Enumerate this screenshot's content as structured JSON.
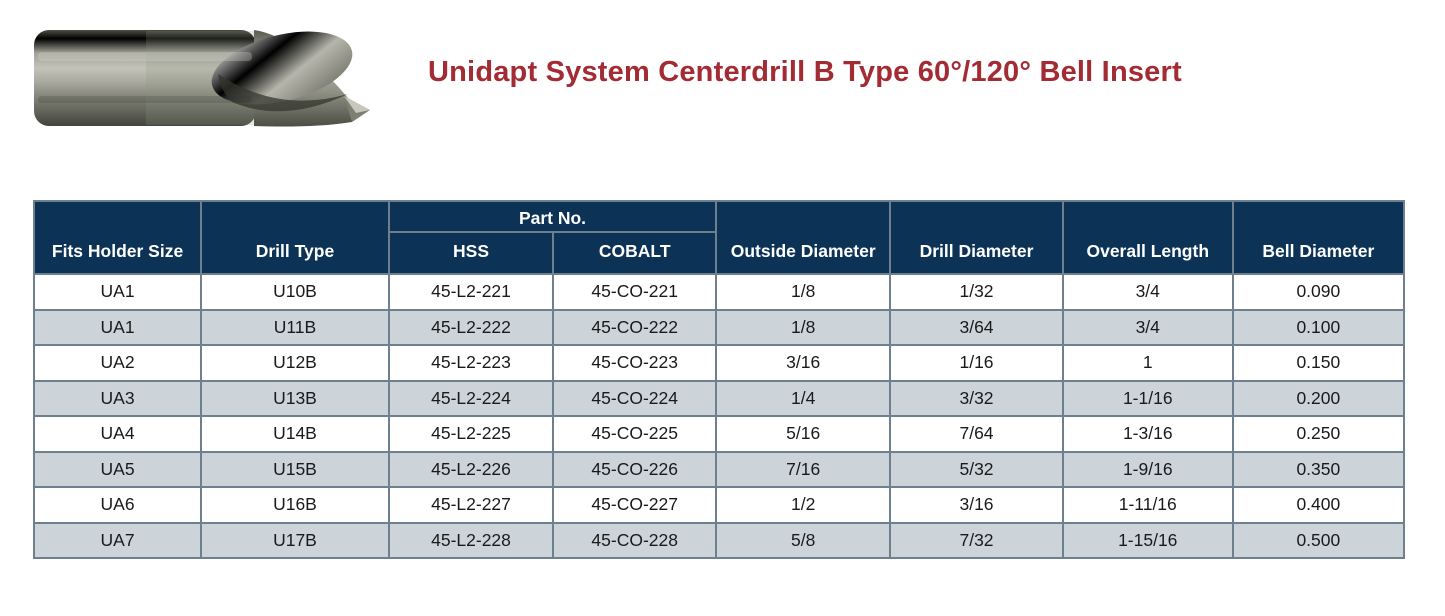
{
  "title": {
    "text": "Unidapt System Centerdrill B Type 60°/120° Bell Insert",
    "color": "#a32b33"
  },
  "product_image": {
    "name": "centerdrill-bell-insert-photo",
    "description": "metallic centerdrill bit with fluted bell tip pointing right"
  },
  "table": {
    "colors": {
      "header_bg": "#0c3356",
      "header_text": "#ffffff",
      "border": "#6e8090",
      "stripe_row_bg": "#ccd3d9",
      "row_bg": "#ffffff",
      "cell_text": "#1a1a1a"
    },
    "part_no_group_label": "Part No.",
    "columns": [
      "Fits Holder Size",
      "Drill Type",
      "HSS",
      "COBALT",
      "Outside Diameter",
      "Drill Diameter",
      "Overall Length",
      "Bell Diameter"
    ],
    "rows": [
      [
        "UA1",
        "U10B",
        "45-L2-221",
        "45-CO-221",
        "1/8",
        "1/32",
        "3/4",
        "0.090"
      ],
      [
        "UA1",
        "U11B",
        "45-L2-222",
        "45-CO-222",
        "1/8",
        "3/64",
        "3/4",
        "0.100"
      ],
      [
        "UA2",
        "U12B",
        "45-L2-223",
        "45-CO-223",
        "3/16",
        "1/16",
        "1",
        "0.150"
      ],
      [
        "UA3",
        "U13B",
        "45-L2-224",
        "45-CO-224",
        "1/4",
        "3/32",
        "1-1/16",
        "0.200"
      ],
      [
        "UA4",
        "U14B",
        "45-L2-225",
        "45-CO-225",
        "5/16",
        "7/64",
        "1-3/16",
        "0.250"
      ],
      [
        "UA5",
        "U15B",
        "45-L2-226",
        "45-CO-226",
        "7/16",
        "5/32",
        "1-9/16",
        "0.350"
      ],
      [
        "UA6",
        "U16B",
        "45-L2-227",
        "45-CO-227",
        "1/2",
        "3/16",
        "1-11/16",
        "0.400"
      ],
      [
        "UA7",
        "U17B",
        "45-L2-228",
        "45-CO-228",
        "5/8",
        "7/32",
        "1-15/16",
        "0.500"
      ]
    ]
  }
}
